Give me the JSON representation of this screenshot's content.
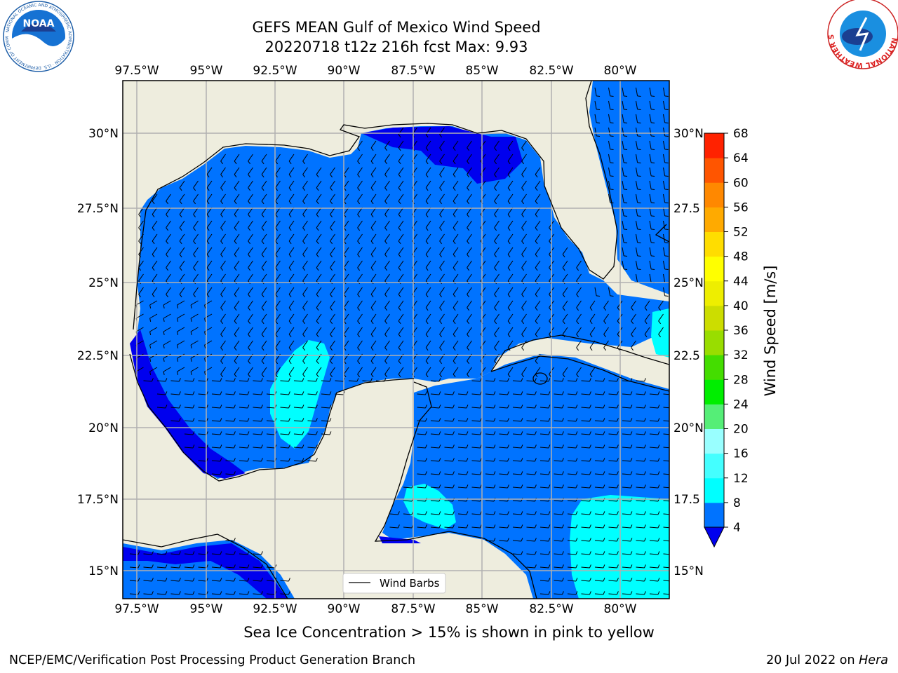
{
  "title_line1": "GEFS MEAN Gulf of Mexico Wind Speed",
  "title_line2": "20220718 t12z 216h fcst   Max: 9.93",
  "note": "Sea Ice Concentration > 15% is shown in pink to yellow",
  "footer_left": "NCEP/EMC/Verification Post Processing Product Generation Branch",
  "footer_date": "20 Jul 2022 on ",
  "footer_host": "Hera",
  "logos": {
    "noaa": {
      "text": "NOAA",
      "ring_text": "NATIONAL OCEANIC AND ATMOSPHERIC ADMINISTRATION · U.S. DEPARTMENT OF COMMERCE"
    },
    "nws": {
      "ring_text": "NATIONAL WEATHER SERVICE"
    }
  },
  "map": {
    "lon_ticks": [
      "97.5°W",
      "95°W",
      "92.5°W",
      "90°W",
      "87.5°W",
      "85°W",
      "82.5°W",
      "80°W"
    ],
    "lat_ticks_left": [
      "30°N",
      "27.5°N",
      "25°N",
      "22.5°N",
      "20°N",
      "17.5°N",
      "15°N"
    ],
    "lat_ticks_right": [
      "30°N",
      "27.5",
      "25°N",
      "22.5",
      "20°N",
      "17.5",
      "15°N"
    ],
    "legend_label": "Wind Barbs",
    "colors": {
      "land": "#eeedde",
      "ocean_4_8": "#0073ff",
      "ocean_under_4": "#0000ee",
      "ocean_8_12": "#00ffff",
      "grid": "#b0b0b0"
    }
  },
  "colorbar": {
    "label": "Wind Speed [m/s]",
    "ticks": [
      "4",
      "8",
      "12",
      "16",
      "20",
      "24",
      "28",
      "32",
      "36",
      "40",
      "44",
      "48",
      "52",
      "56",
      "60",
      "64",
      "68"
    ],
    "colors": [
      "#0073ff",
      "#00ffff",
      "#44ffff",
      "#99ffff",
      "#55ee77",
      "#00ee00",
      "#44dd00",
      "#99dd00",
      "#ccdd00",
      "#eeee00",
      "#ffff00",
      "#ffdd00",
      "#ffaa00",
      "#ff8800",
      "#ff5500",
      "#ff2200"
    ],
    "under_color": "#0000ee"
  }
}
